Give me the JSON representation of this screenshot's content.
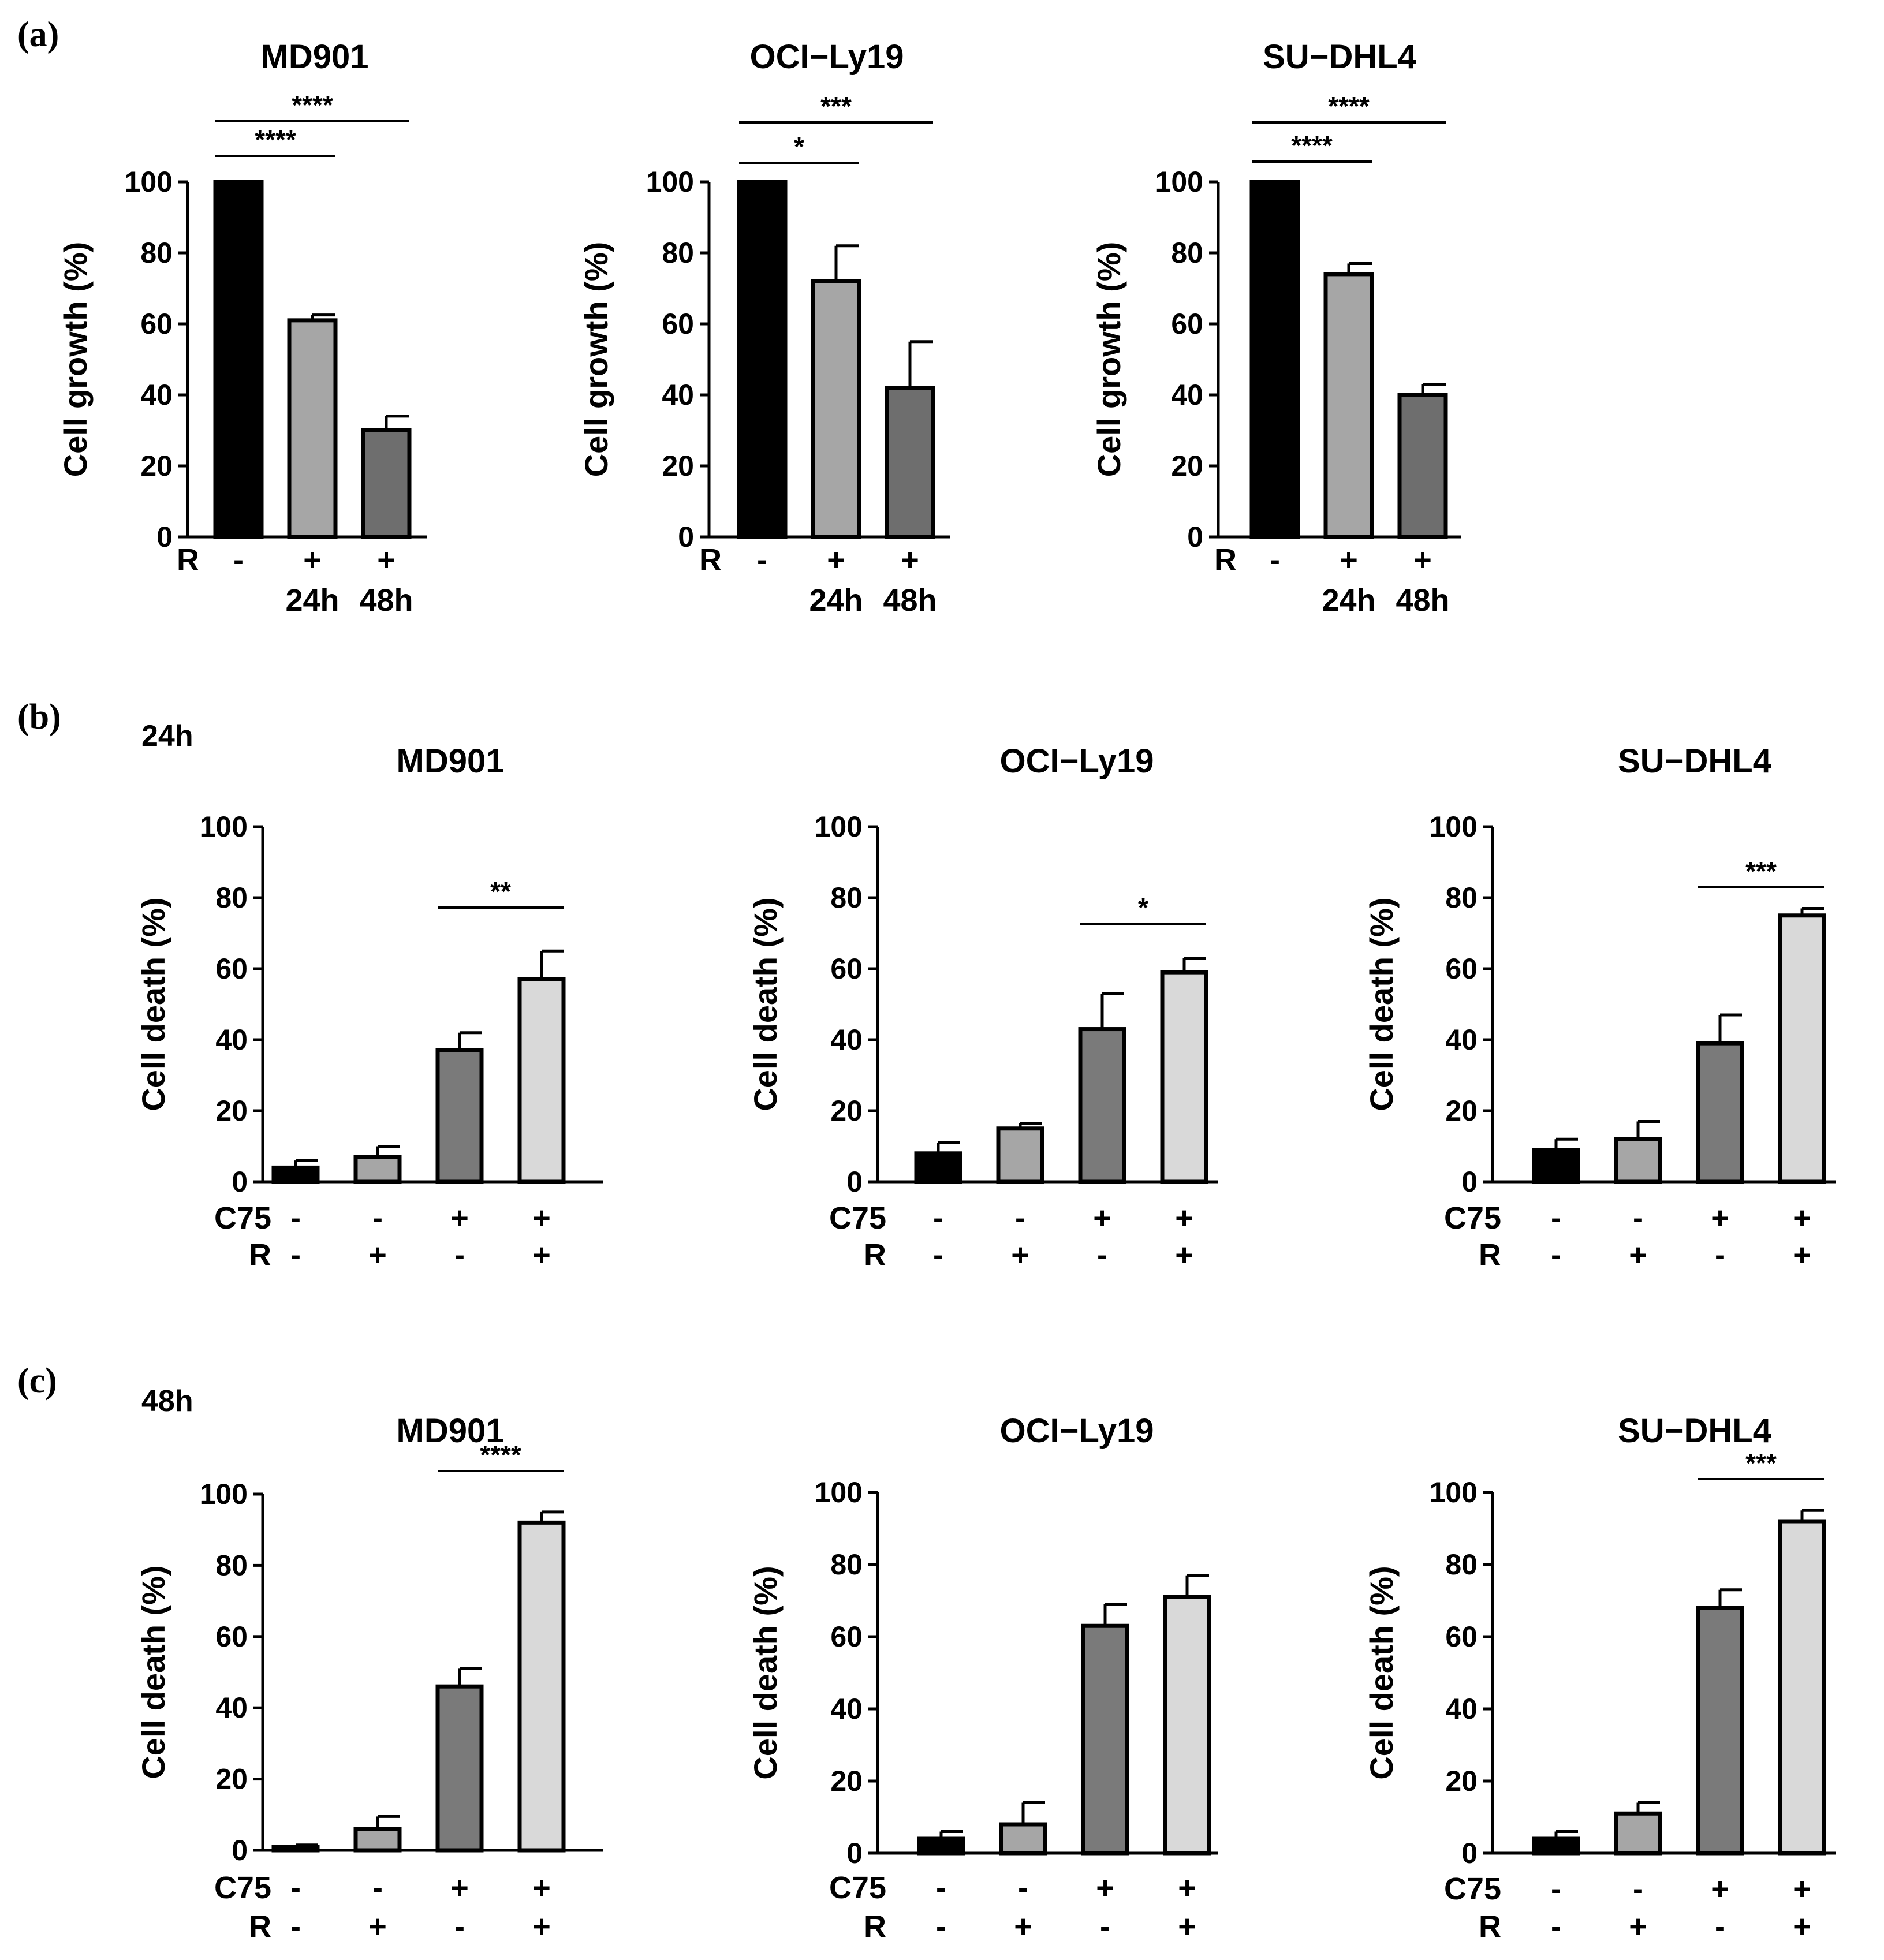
{
  "figure": {
    "panel_labels": [
      "(a)",
      "(b)",
      "(c)"
    ],
    "time_labels": {
      "b": "24h",
      "c": "48h"
    }
  },
  "chart_data": [
    {
      "id": "a-md901",
      "type": "bar",
      "panel": "a",
      "title": "MD901",
      "ylabel": "Cell growth (%)",
      "ylim": [
        0,
        100
      ],
      "yticks": [
        0,
        20,
        40,
        60,
        80,
        100
      ],
      "condition_rows": [
        {
          "label": "R",
          "marks": [
            "-",
            "+",
            "+"
          ]
        }
      ],
      "time_labels": [
        "",
        "24h",
        "48h"
      ],
      "values": [
        100,
        61,
        30
      ],
      "errors": [
        0,
        1.5,
        4
      ],
      "colors": [
        "#000000",
        "#a6a6a6",
        "#6e6e6e"
      ],
      "significance": [
        {
          "from": 0,
          "to": 1,
          "label": "****"
        },
        {
          "from": 0,
          "to": 2,
          "label": "****"
        }
      ]
    },
    {
      "id": "a-ocily19",
      "type": "bar",
      "panel": "a",
      "title": "OCI−Ly19",
      "ylabel": "Cell growth (%)",
      "ylim": [
        0,
        100
      ],
      "yticks": [
        0,
        20,
        40,
        60,
        80,
        100
      ],
      "condition_rows": [
        {
          "label": "R",
          "marks": [
            "-",
            "+",
            "+"
          ]
        }
      ],
      "time_labels": [
        "",
        "24h",
        "48h"
      ],
      "values": [
        100,
        72,
        42
      ],
      "errors": [
        0,
        10,
        13
      ],
      "colors": [
        "#000000",
        "#a6a6a6",
        "#6e6e6e"
      ],
      "significance": [
        {
          "from": 0,
          "to": 1,
          "label": "*"
        },
        {
          "from": 0,
          "to": 2,
          "label": "***"
        }
      ]
    },
    {
      "id": "a-sudhl4",
      "type": "bar",
      "panel": "a",
      "title": "SU−DHL4",
      "ylabel": "Cell growth (%)",
      "ylim": [
        0,
        100
      ],
      "yticks": [
        0,
        20,
        40,
        60,
        80,
        100
      ],
      "condition_rows": [
        {
          "label": "R",
          "marks": [
            "-",
            "+",
            "+"
          ]
        }
      ],
      "time_labels": [
        "",
        "24h",
        "48h"
      ],
      "values": [
        100,
        74,
        40
      ],
      "errors": [
        0,
        3,
        3
      ],
      "colors": [
        "#000000",
        "#a6a6a6",
        "#6e6e6e"
      ],
      "significance": [
        {
          "from": 0,
          "to": 1,
          "label": "****"
        },
        {
          "from": 0,
          "to": 2,
          "label": "****"
        }
      ]
    },
    {
      "id": "b-md901",
      "type": "bar",
      "panel": "b",
      "title": "MD901",
      "ylabel": "Cell death (%)",
      "ylim": [
        0,
        100
      ],
      "yticks": [
        0,
        20,
        40,
        60,
        80,
        100
      ],
      "condition_rows": [
        {
          "label": "C75",
          "marks": [
            "-",
            "-",
            "+",
            "+"
          ]
        },
        {
          "label": "R",
          "marks": [
            "-",
            "+",
            "-",
            "+"
          ]
        }
      ],
      "values": [
        4,
        7,
        37,
        57
      ],
      "errors": [
        2,
        3,
        5,
        8
      ],
      "colors": [
        "#000000",
        "#a6a6a6",
        "#7a7a7a",
        "#d9d9d9"
      ],
      "significance": [
        {
          "from": 2,
          "to": 3,
          "label": "**"
        }
      ]
    },
    {
      "id": "b-ocily19",
      "type": "bar",
      "panel": "b",
      "title": "OCI−Ly19",
      "ylabel": "Cell death (%)",
      "ylim": [
        0,
        100
      ],
      "yticks": [
        0,
        20,
        40,
        60,
        80,
        100
      ],
      "condition_rows": [
        {
          "label": "C75",
          "marks": [
            "-",
            "-",
            "+",
            "+"
          ]
        },
        {
          "label": "R",
          "marks": [
            "-",
            "+",
            "-",
            "+"
          ]
        }
      ],
      "values": [
        8,
        15,
        43,
        59
      ],
      "errors": [
        3,
        1.5,
        10,
        4
      ],
      "colors": [
        "#000000",
        "#a6a6a6",
        "#7a7a7a",
        "#d9d9d9"
      ],
      "significance": [
        {
          "from": 2,
          "to": 3,
          "label": "*"
        }
      ]
    },
    {
      "id": "b-sudhl4",
      "type": "bar",
      "panel": "b",
      "title": "SU−DHL4",
      "ylabel": "Cell death (%)",
      "ylim": [
        0,
        100
      ],
      "yticks": [
        0,
        20,
        40,
        60,
        80,
        100
      ],
      "condition_rows": [
        {
          "label": "C75",
          "marks": [
            "-",
            "-",
            "+",
            "+"
          ]
        },
        {
          "label": "R",
          "marks": [
            "-",
            "+",
            "-",
            "+"
          ]
        }
      ],
      "values": [
        9,
        12,
        39,
        75
      ],
      "errors": [
        3,
        5,
        8,
        2
      ],
      "colors": [
        "#000000",
        "#a6a6a6",
        "#7a7a7a",
        "#d9d9d9"
      ],
      "significance": [
        {
          "from": 2,
          "to": 3,
          "label": "***"
        }
      ]
    },
    {
      "id": "c-md901",
      "type": "bar",
      "panel": "c",
      "title": "MD901",
      "ylabel": "Cell death (%)",
      "ylim": [
        0,
        100
      ],
      "yticks": [
        0,
        20,
        40,
        60,
        80,
        100
      ],
      "condition_rows": [
        {
          "label": "C75",
          "marks": [
            "-",
            "-",
            "+",
            "+"
          ]
        },
        {
          "label": "R",
          "marks": [
            "-",
            "+",
            "-",
            "+"
          ]
        }
      ],
      "values": [
        1,
        6,
        46,
        92
      ],
      "errors": [
        0.5,
        3.5,
        5,
        3
      ],
      "colors": [
        "#000000",
        "#a6a6a6",
        "#7a7a7a",
        "#d9d9d9"
      ],
      "significance": [
        {
          "from": 2,
          "to": 3,
          "label": "****"
        }
      ]
    },
    {
      "id": "c-ocily19",
      "type": "bar",
      "panel": "c",
      "title": "OCI−Ly19",
      "ylabel": "Cell death (%)",
      "ylim": [
        0,
        100
      ],
      "yticks": [
        0,
        20,
        40,
        60,
        80,
        100
      ],
      "condition_rows": [
        {
          "label": "C75",
          "marks": [
            "-",
            "-",
            "+",
            "+"
          ]
        },
        {
          "label": "R",
          "marks": [
            "-",
            "+",
            "-",
            "+"
          ]
        }
      ],
      "values": [
        4,
        8,
        63,
        71
      ],
      "errors": [
        2,
        6,
        6,
        6
      ],
      "colors": [
        "#000000",
        "#a6a6a6",
        "#7a7a7a",
        "#d9d9d9"
      ],
      "significance": []
    },
    {
      "id": "c-sudhl4",
      "type": "bar",
      "panel": "c",
      "title": "SU−DHL4",
      "ylabel": "Cell death (%)",
      "ylim": [
        0,
        100
      ],
      "yticks": [
        0,
        20,
        40,
        60,
        80,
        100
      ],
      "condition_rows": [
        {
          "label": "C75",
          "marks": [
            "-",
            "-",
            "+",
            "+"
          ]
        },
        {
          "label": "R",
          "marks": [
            "-",
            "+",
            "-",
            "+"
          ]
        }
      ],
      "values": [
        4,
        11,
        68,
        92
      ],
      "errors": [
        2,
        3,
        5,
        3
      ],
      "colors": [
        "#000000",
        "#a6a6a6",
        "#7a7a7a",
        "#d9d9d9"
      ],
      "significance": [
        {
          "from": 2,
          "to": 3,
          "label": "***"
        }
      ]
    }
  ]
}
